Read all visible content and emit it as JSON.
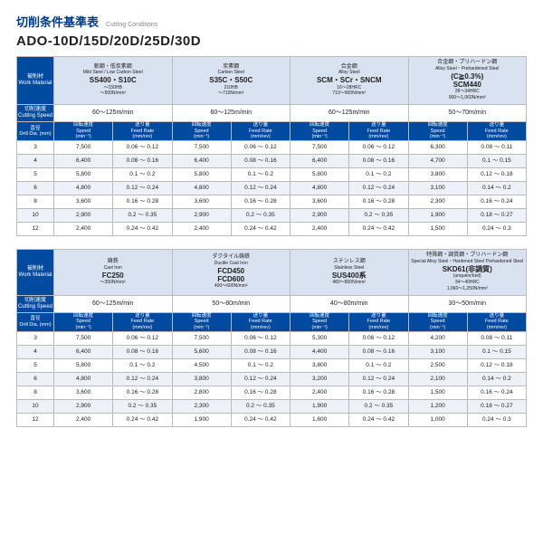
{
  "title": {
    "jp": "切削条件基準表",
    "en": "Cutting Conditions"
  },
  "product": "ADO-10D/15D/20D/25D/30D",
  "colHeaders": {
    "side1": {
      "jp": "被削材",
      "en": "Work Material"
    },
    "side2": {
      "jp": "切削速度",
      "en": "Cutting Speed"
    },
    "side3": {
      "jp": "直径",
      "en": "Drill Dia. (mm)"
    },
    "speed": {
      "jp": "回転速度",
      "sub": "Speed",
      "unit": "(min⁻¹)"
    },
    "feed": {
      "jp": "送り量",
      "sub": "Feed Rate",
      "unit": "(mm/rev)"
    }
  },
  "tables": [
    {
      "materials": [
        {
          "l1": "軟鋼・低炭素鋼",
          "l2": "Mild Steel / Low Carbon Steel",
          "l3": "SS400・S10C",
          "l4": "～150HB",
          "l5": "～500N/mm²"
        },
        {
          "l1": "炭素鋼",
          "l2": "Carbon Steel",
          "l3": "S35C・S50C",
          "l4": "210HB",
          "l5": "～710N/mm²"
        },
        {
          "l1": "合金鋼",
          "l2": "Alloy Steel",
          "l3": "SCM・SCr・SNCM",
          "l4": "16～28HRC",
          "l5": "710～900N/mm²"
        },
        {
          "l1": "合金鋼・プリハードン鋼",
          "l2": "Alloy Steel・Prehardened Steel",
          "l3": "(C≧0.3%)\nSCM440",
          "l4": "28～34HRC",
          "l5": "900～1,060N/mm²"
        }
      ],
      "conds": [
        "60～125m/min",
        "60～125m/min",
        "60～125m/min",
        "50～70m/min"
      ],
      "rows": [
        {
          "d": "3",
          "v": [
            [
              "7,500",
              "0.06 ～ 0.12"
            ],
            [
              "7,500",
              "0.06 ～ 0.12"
            ],
            [
              "7,500",
              "0.06 ～ 0.12"
            ],
            [
              "6,300",
              "0.08 ～ 0.11"
            ]
          ]
        },
        {
          "d": "4",
          "v": [
            [
              "6,400",
              "0.08 ～ 0.16"
            ],
            [
              "6,400",
              "0.08 ～ 0.16"
            ],
            [
              "6,400",
              "0.08 ～ 0.16"
            ],
            [
              "4,700",
              "0.1 ～ 0.15"
            ]
          ],
          "s": 1
        },
        {
          "d": "5",
          "v": [
            [
              "5,800",
              "0.1 ～ 0.2"
            ],
            [
              "5,800",
              "0.1 ～ 0.2"
            ],
            [
              "5,800",
              "0.1 ～ 0.2"
            ],
            [
              "3,800",
              "0.12 ～ 0.18"
            ]
          ]
        },
        {
          "d": "6",
          "v": [
            [
              "4,800",
              "0.12 ～ 0.24"
            ],
            [
              "4,800",
              "0.12 ～ 0.24"
            ],
            [
              "4,800",
              "0.12 ～ 0.24"
            ],
            [
              "3,100",
              "0.14 ～ 0.2"
            ]
          ],
          "s": 1
        },
        {
          "d": "8",
          "v": [
            [
              "3,600",
              "0.16 ～ 0.28"
            ],
            [
              "3,600",
              "0.16 ～ 0.28"
            ],
            [
              "3,600",
              "0.16 ～ 0.28"
            ],
            [
              "2,300",
              "0.16 ～ 0.24"
            ]
          ]
        },
        {
          "d": "10",
          "v": [
            [
              "2,900",
              "0.2 ～ 0.35"
            ],
            [
              "2,900",
              "0.2 ～ 0.35"
            ],
            [
              "2,900",
              "0.2 ～ 0.35"
            ],
            [
              "1,900",
              "0.18 ～ 0.27"
            ]
          ],
          "s": 1
        },
        {
          "d": "12",
          "v": [
            [
              "2,400",
              "0.24 ～ 0.42"
            ],
            [
              "2,400",
              "0.24 ～ 0.42"
            ],
            [
              "2,400",
              "0.24 ～ 0.42"
            ],
            [
              "1,500",
              "0.24 ～ 0.3"
            ]
          ]
        }
      ]
    },
    {
      "materials": [
        {
          "l1": "鋳鉄",
          "l2": "Cast Iron",
          "l3": "FC250",
          "l4": "",
          "l5": "～350N/mm²"
        },
        {
          "l1": "ダクタイル鋳鉄",
          "l2": "Ductile Cast Iron",
          "l3": "FCD450\nFCD600",
          "l4": "",
          "l5": "400～600N/mm²"
        },
        {
          "l1": "ステンレス鋼",
          "l2": "Stainless Steel",
          "l3": "SUS400系",
          "l4": "",
          "l5": "480～800N/mm²"
        },
        {
          "l1": "特殊鋼・調質鋼・プリハードン鋼",
          "l2": "Special Alloy Steel・Hardened Steel\nPrehardened Steel",
          "l3": "SKD61(非調質)",
          "l4": "(unquenched)\n34～40HRC",
          "l5": "1,060～1,250N/mm²"
        }
      ],
      "conds": [
        "60～125m/min",
        "50～80m/min",
        "40～80m/min",
        "30～50m/min"
      ],
      "rows": [
        {
          "d": "3",
          "v": [
            [
              "7,500",
              "0.06 ～ 0.12"
            ],
            [
              "7,500",
              "0.06 ～ 0.12"
            ],
            [
              "5,300",
              "0.06 ～ 0.12"
            ],
            [
              "4,200",
              "0.08 ～ 0.11"
            ]
          ]
        },
        {
          "d": "4",
          "v": [
            [
              "6,400",
              "0.08 ～ 0.16"
            ],
            [
              "5,600",
              "0.08 ～ 0.16"
            ],
            [
              "4,400",
              "0.08 ～ 0.16"
            ],
            [
              "3,100",
              "0.1 ～ 0.15"
            ]
          ],
          "s": 1
        },
        {
          "d": "5",
          "v": [
            [
              "5,800",
              "0.1 ～ 0.2"
            ],
            [
              "4,500",
              "0.1 ～ 0.2"
            ],
            [
              "3,800",
              "0.1 ～ 0.2"
            ],
            [
              "2,500",
              "0.12 ～ 0.18"
            ]
          ]
        },
        {
          "d": "6",
          "v": [
            [
              "4,800",
              "0.12 ～ 0.24"
            ],
            [
              "3,800",
              "0.12 ～ 0.24"
            ],
            [
              "3,200",
              "0.12 ～ 0.24"
            ],
            [
              "2,100",
              "0.14 ～ 0.2"
            ]
          ],
          "s": 1
        },
        {
          "d": "8",
          "v": [
            [
              "3,600",
              "0.16 ～ 0.28"
            ],
            [
              "2,800",
              "0.16 ～ 0.28"
            ],
            [
              "2,400",
              "0.16 ～ 0.28"
            ],
            [
              "1,500",
              "0.16 ～ 0.24"
            ]
          ]
        },
        {
          "d": "10",
          "v": [
            [
              "2,900",
              "0.2 ～ 0.35"
            ],
            [
              "2,300",
              "0.2 ～ 0.35"
            ],
            [
              "1,900",
              "0.2 ～ 0.35"
            ],
            [
              "1,200",
              "0.18 ～ 0.27"
            ]
          ],
          "s": 1
        },
        {
          "d": "12",
          "v": [
            [
              "2,400",
              "0.24 ～ 0.42"
            ],
            [
              "1,900",
              "0.24 ～ 0.42"
            ],
            [
              "1,600",
              "0.24 ～ 0.42"
            ],
            [
              "1,000",
              "0.24 ～ 0.3"
            ]
          ]
        }
      ]
    }
  ]
}
